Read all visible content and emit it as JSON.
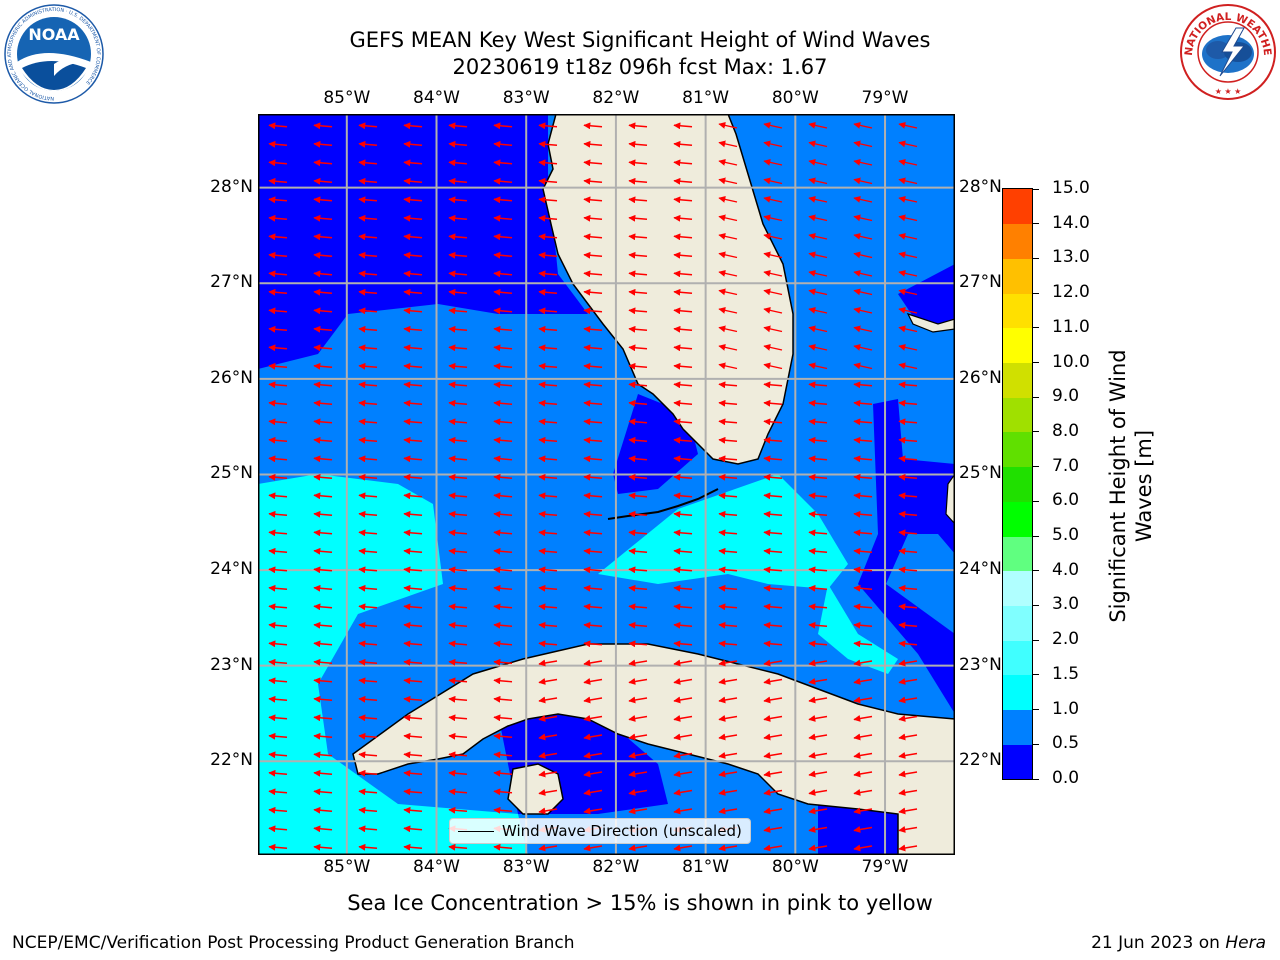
{
  "title": {
    "line1": "GEFS MEAN Key West Significant Height of Wind Waves",
    "line2": "20230619 t18z 096h fcst   Max: 1.67"
  },
  "logos": {
    "left": "NOAA",
    "left_ring_text": "NATIONAL OCEANIC AND ATMOSPHERIC ADMINISTRATION · U.S. DEPARTMENT OF COMMERCE",
    "right_ring_text": "NATIONAL WEATHER SERVICE"
  },
  "map": {
    "lon_labels": [
      "85°W",
      "84°W",
      "83°W",
      "82°W",
      "81°W",
      "80°W",
      "79°W"
    ],
    "lat_labels": [
      "28°N",
      "27°N",
      "26°N",
      "25°N",
      "24°N",
      "23°N",
      "22°N"
    ],
    "extent": {
      "lon_min": -85.99,
      "lon_max": -78.22,
      "lat_min": 21.02,
      "lat_max": 28.77
    },
    "colors": {
      "land": "#efecdc",
      "grid": "#b0b0b0",
      "arrow": "#ff0000"
    },
    "legend_label": "Wind Wave Direction (unscaled)"
  },
  "colorbar": {
    "label": "Significant Height of Wind Waves [m]",
    "ticks": [
      "0.0",
      "0.5",
      "1.0",
      "1.5",
      "2.0",
      "3.0",
      "4.0",
      "5.0",
      "6.0",
      "7.0",
      "8.0",
      "9.0",
      "10.0",
      "11.0",
      "12.0",
      "13.0",
      "14.0",
      "15.0"
    ],
    "colors": [
      "#0000ff",
      "#0080ff",
      "#00ffff",
      "#40ffff",
      "#80ffff",
      "#b0ffff",
      "#60ff80",
      "#00ff00",
      "#20e000",
      "#60e000",
      "#a0e000",
      "#d0e000",
      "#ffff00",
      "#ffe000",
      "#ffc000",
      "#ff8000",
      "#ff4000",
      "#ff0000"
    ]
  },
  "ice_note": "Sea Ice Concentration > 15% is shown in pink to yellow",
  "footer": {
    "left": "NCEP/EMC/Verification Post Processing Product Generation Branch",
    "right_prefix": "21 Jun 2023 on ",
    "right_machine": "Hera"
  }
}
